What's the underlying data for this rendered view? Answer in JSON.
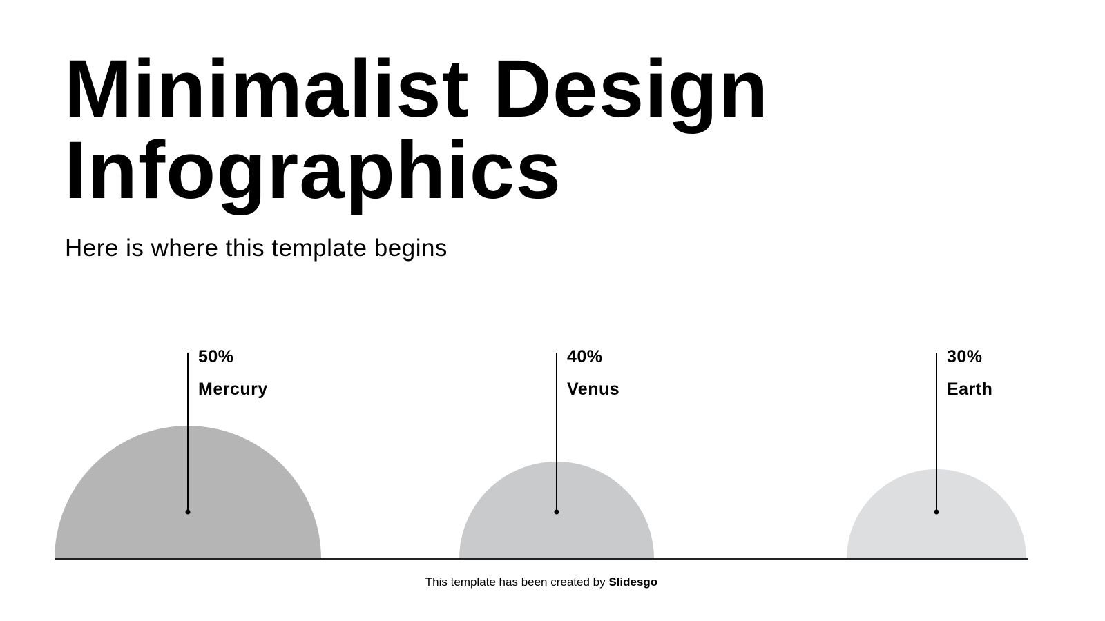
{
  "title": {
    "line1": "Minimalist Design",
    "line2": "Infographics"
  },
  "subtitle": "Here is where this template begins",
  "items": [
    {
      "percent": "50%",
      "value": 50,
      "name": "Mercury",
      "color": "#b5b5b5"
    },
    {
      "percent": "40%",
      "value": 40,
      "name": "Venus",
      "color": "#c9cacb"
    },
    {
      "percent": "30%",
      "value": 30,
      "name": "Earth",
      "color": "#dcdee0"
    }
  ],
  "footer": {
    "text": "This template has been created by ",
    "brand": "Slidesgo"
  }
}
